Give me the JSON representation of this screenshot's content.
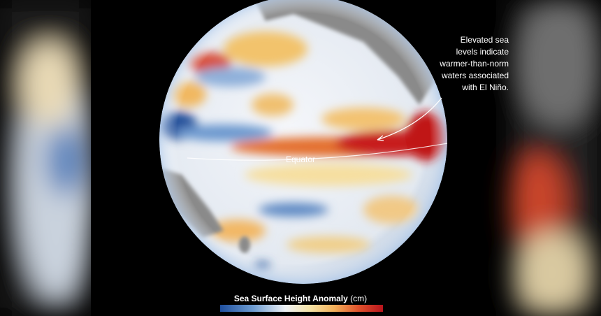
{
  "annotation": {
    "lines": [
      "Elevated sea",
      "levels indicate",
      "warmer-than-norm",
      "waters associated",
      "with El Niño."
    ]
  },
  "equator_label": "Equator",
  "legend": {
    "title": "Sea Surface Height Anomaly",
    "unit": "(cm)"
  }
}
